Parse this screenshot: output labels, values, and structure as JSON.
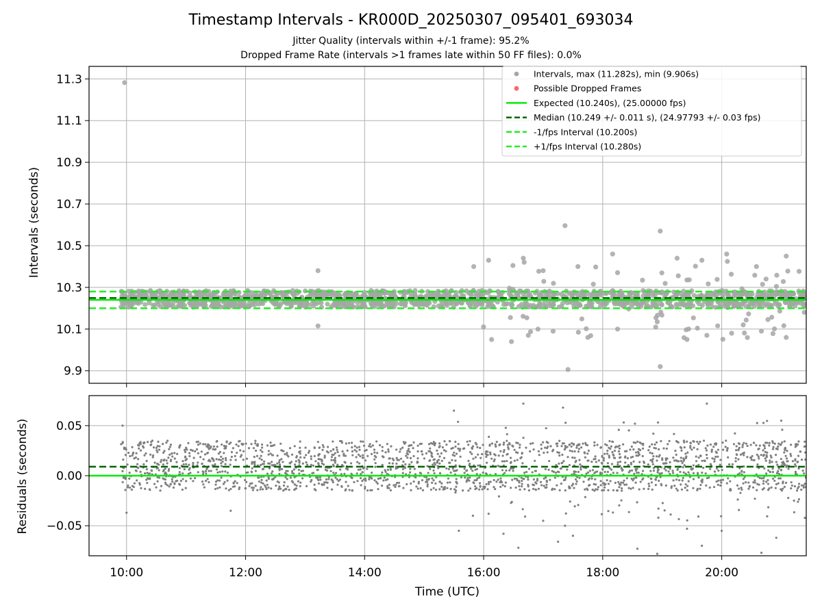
{
  "figure": {
    "title": "Timestamp Intervals - KR000D_20250307_095401_693034",
    "subtitle_lines": [
      "Jitter Quality (intervals within +/-1 frame): 95.2%",
      "Dropped Frame Rate (intervals >1 frames late within 50 FF files): 0.0%"
    ]
  },
  "colors": {
    "points": "#7f7f7f",
    "points_top": "#a6a6a6",
    "dropped": "#ff6666",
    "expected": "#00ee00",
    "median": "#006400",
    "fps_interval": "#22ee22",
    "grid": "#b0b0b0"
  },
  "chart_data": [
    {
      "type": "scatter",
      "panel": "intervals",
      "ylabel": "Intervals (seconds)",
      "xlim_hours": [
        9.37,
        21.42
      ],
      "ylim": [
        9.84,
        11.36
      ],
      "yticks": [
        9.9,
        10.1,
        10.3,
        10.5,
        10.7,
        10.9,
        11.1,
        11.3
      ],
      "ytick_labels": [
        "9.9",
        "10.1",
        "10.3",
        "10.5",
        "10.7",
        "10.9",
        "11.1",
        "11.3"
      ],
      "grid": true,
      "legend_position": "top-right",
      "legend": [
        {
          "label": "Intervals, max (11.282s), min (9.906s)",
          "marker": "dot",
          "color": "#a6a6a6"
        },
        {
          "label": "Possible Dropped Frames",
          "marker": "dot",
          "color": "#ff6666"
        },
        {
          "label": "Expected (10.240s), (25.00000 fps)",
          "marker": "line",
          "color": "#00ee00"
        },
        {
          "label": "Median (10.249 +/- 0.011 s), (24.97793 +/- 0.03 fps)",
          "marker": "dash",
          "color": "#006400"
        },
        {
          "label": "-1/fps Interval (10.200s)",
          "marker": "dash",
          "color": "#22ee22"
        },
        {
          "label": "+1/fps Interval (10.280s)",
          "marker": "dash",
          "color": "#22ee22"
        }
      ],
      "reference_lines": {
        "expected": 10.24,
        "median": 10.249,
        "minus_fps": 10.2,
        "plus_fps": 10.28
      },
      "series": [
        {
          "name": "Intervals, max (11.282s), min (9.906s)",
          "note": "dense band ~10.20-10.28 over 09:54-21:25; scattered outliers listed",
          "band": {
            "x_start_hours": 9.9,
            "x_end_hours": 21.42,
            "y_low": 10.205,
            "y_high": 10.285
          },
          "outliers": [
            {
              "x": "09:58",
              "y": 11.282
            },
            {
              "x": "13:13",
              "y": 10.38
            },
            {
              "x": "13:13",
              "y": 10.115
            },
            {
              "x": "15:50",
              "y": 10.4
            },
            {
              "x": "16:05",
              "y": 10.43
            },
            {
              "x": "16:08",
              "y": 10.05
            },
            {
              "x": "16:28",
              "y": 10.04
            },
            {
              "x": "16:40",
              "y": 10.44
            },
            {
              "x": "16:45",
              "y": 10.07
            },
            {
              "x": "17:00",
              "y": 10.38
            },
            {
              "x": "17:10",
              "y": 10.09
            },
            {
              "x": "17:22",
              "y": 10.596
            },
            {
              "x": "17:25",
              "y": 9.906
            },
            {
              "x": "17:35",
              "y": 10.4
            },
            {
              "x": "17:45",
              "y": 10.06
            },
            {
              "x": "18:10",
              "y": 10.46
            },
            {
              "x": "18:15",
              "y": 10.1
            },
            {
              "x": "18:58",
              "y": 10.57
            },
            {
              "x": "18:58",
              "y": 9.92
            },
            {
              "x": "19:15",
              "y": 10.44
            },
            {
              "x": "19:25",
              "y": 10.05
            },
            {
              "x": "19:40",
              "y": 10.43
            },
            {
              "x": "19:45",
              "y": 10.07
            },
            {
              "x": "20:05",
              "y": 10.46
            },
            {
              "x": "20:10",
              "y": 10.08
            },
            {
              "x": "20:35",
              "y": 10.4
            },
            {
              "x": "20:40",
              "y": 10.09
            },
            {
              "x": "21:05",
              "y": 10.45
            },
            {
              "x": "21:05",
              "y": 10.06
            }
          ]
        }
      ]
    },
    {
      "type": "scatter",
      "panel": "residuals",
      "xlabel": "Time (UTC)",
      "ylabel": "Residuals (seconds)",
      "xlim_hours": [
        9.37,
        21.42
      ],
      "ylim": [
        -0.08,
        0.08
      ],
      "yticks": [
        -0.05,
        0.0,
        0.05
      ],
      "ytick_labels": [
        "−0.05",
        "0.00",
        "0.05"
      ],
      "xticks_hours": [
        10,
        12,
        14,
        16,
        18,
        20
      ],
      "xtick_labels": [
        "10:00",
        "12:00",
        "14:00",
        "16:00",
        "18:00",
        "20:00"
      ],
      "grid": true,
      "reference_lines": {
        "zero": 0.0,
        "median_offset": 0.009
      },
      "series": [
        {
          "name": "Residuals",
          "note": "dense band ~-0.015 to 0.035 over 09:54-21:25; scattered outliers listed",
          "band": {
            "x_start_hours": 9.9,
            "x_end_hours": 21.42,
            "y_low": -0.015,
            "y_high": 0.035
          },
          "outliers": [
            {
              "x": "09:56",
              "y": 0.05
            },
            {
              "x": "10:00",
              "y": -0.037
            },
            {
              "x": "11:45",
              "y": -0.035
            },
            {
              "x": "15:30",
              "y": 0.065
            },
            {
              "x": "15:35",
              "y": -0.055
            },
            {
              "x": "16:05",
              "y": -0.038
            },
            {
              "x": "16:20",
              "y": -0.058
            },
            {
              "x": "16:35",
              "y": -0.072
            },
            {
              "x": "16:40",
              "y": 0.072
            },
            {
              "x": "17:00",
              "y": -0.045
            },
            {
              "x": "17:15",
              "y": -0.066
            },
            {
              "x": "17:20",
              "y": 0.068
            },
            {
              "x": "17:22",
              "y": -0.05
            },
            {
              "x": "17:30",
              "y": -0.06
            },
            {
              "x": "18:35",
              "y": -0.073
            },
            {
              "x": "18:55",
              "y": -0.078
            },
            {
              "x": "19:25",
              "y": -0.053
            },
            {
              "x": "19:40",
              "y": -0.07
            },
            {
              "x": "19:45",
              "y": 0.072
            },
            {
              "x": "20:00",
              "y": -0.055
            },
            {
              "x": "20:40",
              "y": -0.077
            },
            {
              "x": "20:55",
              "y": -0.062
            },
            {
              "x": "21:00",
              "y": 0.055
            }
          ]
        }
      ]
    }
  ]
}
